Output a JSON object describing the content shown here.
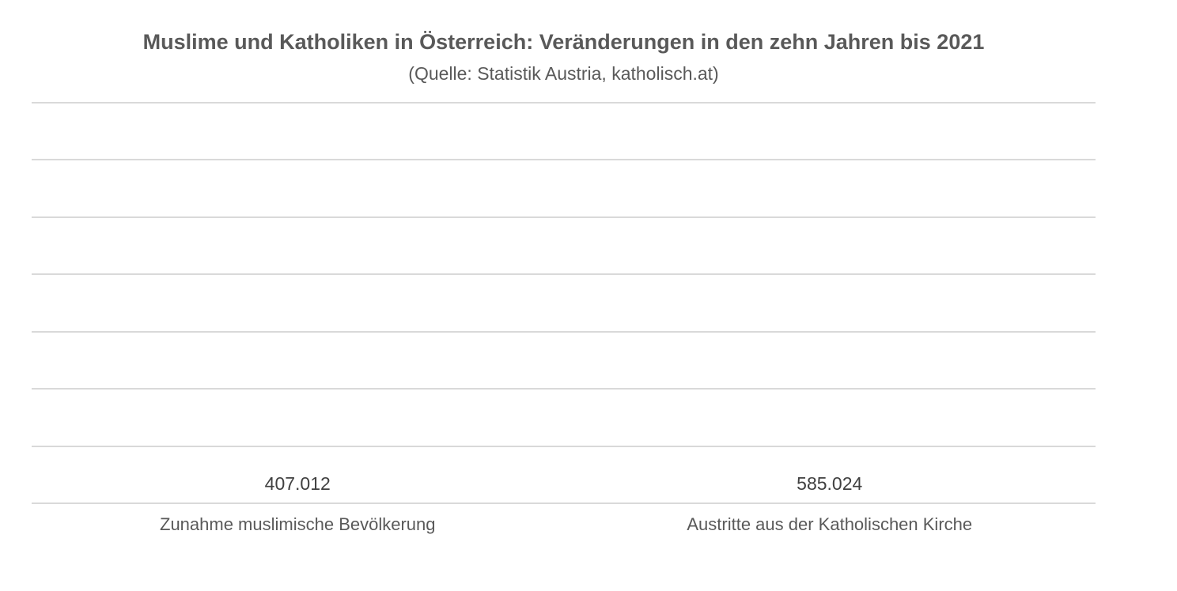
{
  "chart_data": {
    "type": "bar",
    "title": "Muslime und Katholiken in Österreich: Veränderungen in den zehn Jahren bis 2021",
    "subtitle": "(Quelle: Statistik Austria, katholisch.at)",
    "categories": [
      "Zunahme muslimische Bevölkerung",
      "Austritte aus der Katholischen Kirche"
    ],
    "values": [
      407012,
      585024
    ],
    "value_labels": [
      "407.012",
      "585.024"
    ],
    "bar_colors": [
      "#e53420",
      "#3470bb"
    ],
    "xlabel": "",
    "ylabel": "",
    "ylim": [
      0,
      700000
    ],
    "gridline_step": 100000,
    "grid": true,
    "y_axis_tick_labels_visible": false,
    "legend": "none",
    "colors": {
      "title": "#595959",
      "subtitle": "#595959",
      "value_label": "#404040",
      "category_label": "#595959",
      "gridline": "#d9d9d9",
      "background": "#ffffff"
    }
  }
}
